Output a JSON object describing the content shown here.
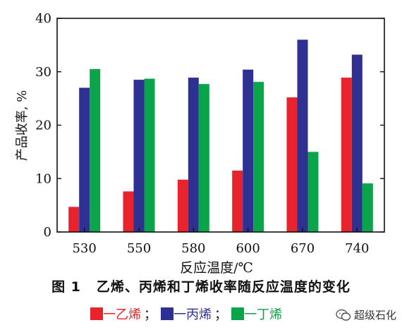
{
  "chart_data": {
    "type": "bar",
    "categories": [
      "530",
      "550",
      "580",
      "600",
      "670",
      "740"
    ],
    "series": [
      {
        "name": "乙烯",
        "color": "#e8232b",
        "values": [
          4.7,
          7.6,
          9.8,
          11.5,
          25.2,
          28.9
        ]
      },
      {
        "name": "丙烯",
        "color": "#2e3192",
        "values": [
          27.0,
          28.5,
          28.9,
          30.4,
          36.0,
          33.2
        ]
      },
      {
        "name": "丁烯",
        "color": "#0aa54a",
        "values": [
          30.5,
          28.7,
          27.7,
          28.1,
          15.0,
          9.1
        ]
      }
    ],
    "ylim": [
      0,
      40
    ],
    "yticks": [
      0,
      10,
      20,
      30,
      40
    ],
    "xlabel": "反应温度/℃",
    "ylabel": "产品收率, %",
    "grid": false
  },
  "caption": {
    "number": "图 1",
    "text": "乙烯、丙烯和丁烯收率随反应温度的变化"
  },
  "legend": {
    "items": [
      {
        "label": "一乙烯",
        "color": "#e8232b"
      },
      {
        "label": "一丙烯",
        "color": "#2e3192"
      },
      {
        "label": "一丁烯",
        "color": "#0aa54a"
      }
    ],
    "separator": "；"
  },
  "watermark": {
    "text": "超级石化",
    "icon": "wechat-icon"
  }
}
